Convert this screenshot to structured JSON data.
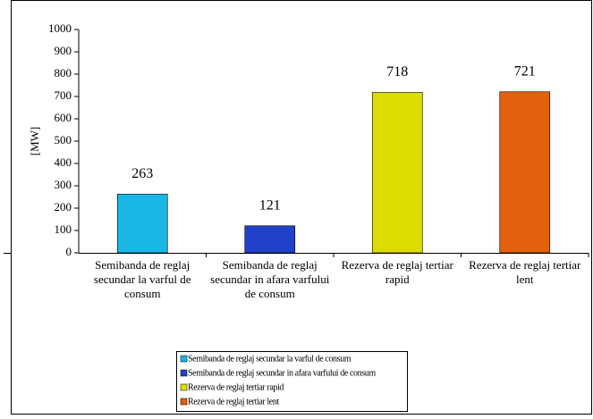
{
  "chart_data": {
    "type": "bar",
    "ylabel": "[MW]",
    "categories": [
      "Semibanda de reglaj secundar la varful de consum",
      "Semibanda de reglaj secundar in afara varfului de consum",
      "Rezerva de reglaj tertiar rapid",
      "Rezerva de reglaj tertiar lent"
    ],
    "values": [
      263,
      121,
      718,
      721
    ],
    "colors": [
      "#19b6e6",
      "#2340c8",
      "#dcdc00",
      "#e2600e"
    ],
    "ylim": [
      0,
      1000
    ],
    "yticks": [
      0,
      100,
      200,
      300,
      400,
      500,
      600,
      700,
      800,
      900,
      1000
    ],
    "grid": false,
    "legend": "bottom"
  }
}
